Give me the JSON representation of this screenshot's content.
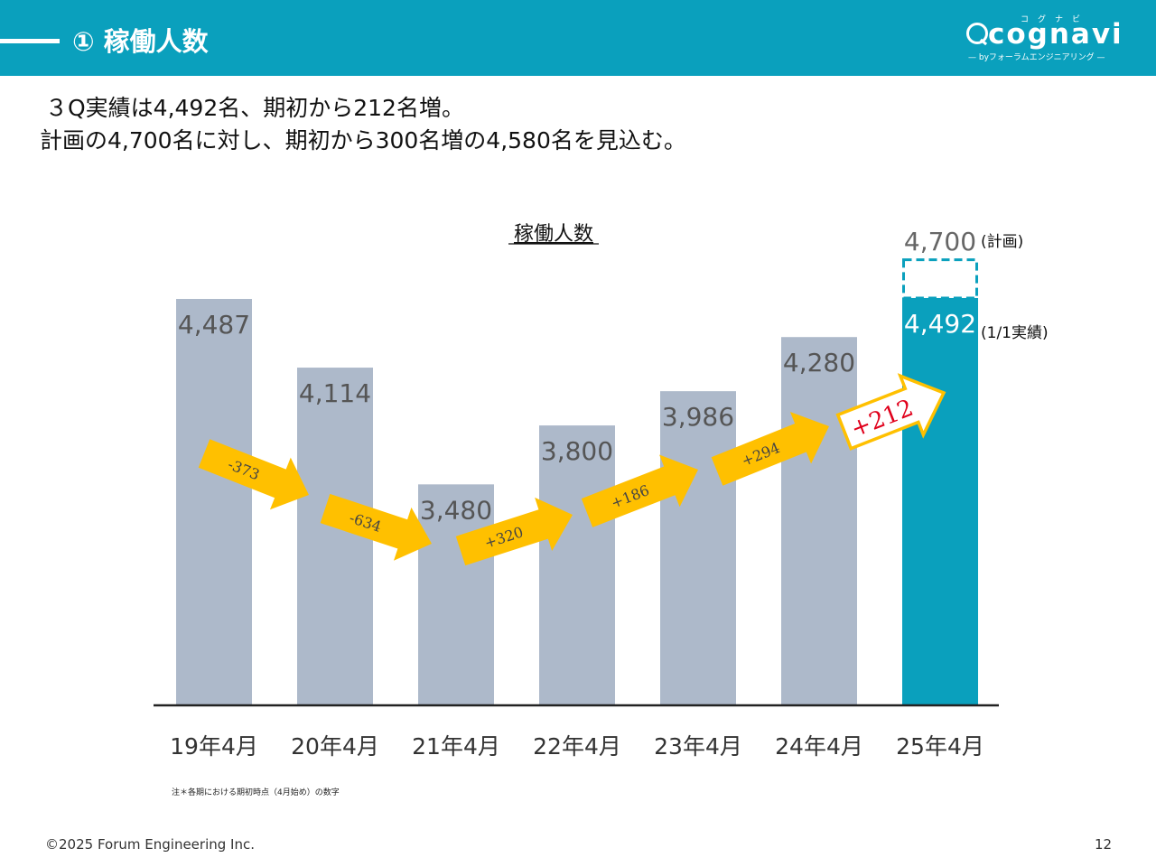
{
  "header": {
    "title": "① 稼働人数",
    "logo": {
      "word": "cognavi",
      "kana": "コグナビ",
      "sub": "— byフォーラムエンジニアリング —"
    }
  },
  "summary": {
    "line1": "３Q実績は4,492名、期初から212名増。",
    "line2": "計画の4,700名に対し、期初から300名増の4,580名を見込む。"
  },
  "chart_data": {
    "type": "bar",
    "title": "稼働人数",
    "categories": [
      "19年4月",
      "20年4月",
      "21年4月",
      "22年4月",
      "23年4月",
      "24年4月",
      "25年4月"
    ],
    "values": [
      4487,
      4114,
      3480,
      3800,
      3986,
      4280,
      4492
    ],
    "value_labels": [
      "4,487",
      "4,114",
      "3,480",
      "3,800",
      "3,986",
      "4,280",
      "4,492"
    ],
    "plan": {
      "value": 4700,
      "label": "4,700",
      "note": "(計画)"
    },
    "actual_note": "(1/1実績)",
    "changes": [
      "-373",
      "-634",
      "+320",
      "+186",
      "+294",
      "+212"
    ],
    "ylim": [
      0,
      4700
    ],
    "grid": false,
    "colors": {
      "bar": "#adb9ca",
      "highlight_bar": "#0aa0bd",
      "arrow": "#ffc000",
      "highlight_change": "#e0001b"
    }
  },
  "footnote": "注＊各期における期初時点（4月始め）の数字",
  "footer": {
    "copyright": "©2025 Forum Engineering Inc.",
    "page": "12"
  }
}
